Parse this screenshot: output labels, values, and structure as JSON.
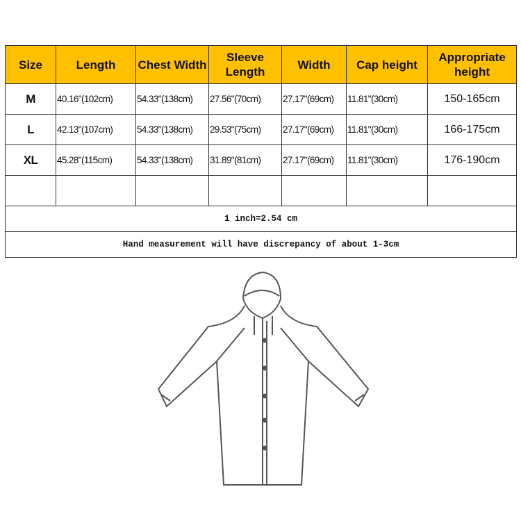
{
  "headers": [
    "Size",
    "Length",
    "Chest Width",
    "Sleeve Length",
    "Width",
    "Cap height",
    "Appropriate height"
  ],
  "rows": [
    [
      "M",
      "40.16\"(102cm)",
      "54.33\"(138cm)",
      "27.56\"(70cm)",
      "27.17\"(69cm)",
      "11.81\"(30cm)",
      "150-165cm"
    ],
    [
      "L",
      "42.13\"(107cm)",
      "54.33\"(138cm)",
      "29.53\"(75cm)",
      "27.17\"(69cm)",
      "11.81\"(30cm)",
      "166-175cm"
    ],
    [
      "XL",
      "45.28\"(115cm)",
      "54.33\"(138cm)",
      "31.89\"(81cm)",
      "27.17\"(69cm)",
      "11.81\"(30cm)",
      "176-190cm"
    ]
  ],
  "notes": [
    "1 inch=2.54 cm",
    "Hand measurement will have discrepancy of about 1-3cm"
  ],
  "header_color": "#ffc000",
  "illustration": "raincoat-outline"
}
